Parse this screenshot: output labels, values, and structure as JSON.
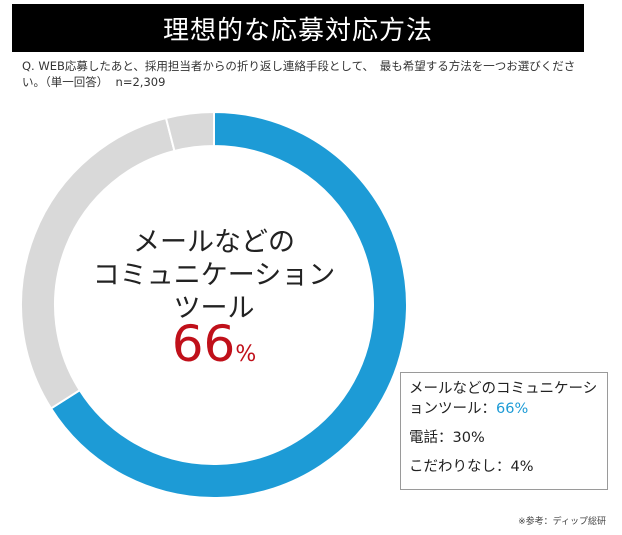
{
  "header": {
    "title": "理想的な応募対応方法",
    "question": "Q. WEB応募したあと、採用担当者からの折り返し連絡手段として、　最も希望する方法を一つお選びください。（単一回答）  n=2,309"
  },
  "center": {
    "label_line1": "メールなどの",
    "label_line2": "コミュニケーション",
    "label_line3": "ツール",
    "value_number": "66",
    "value_unit": "%"
  },
  "legend": {
    "item1_label": "メールなどのコミュニケーションツール：",
    "item1_value": "66%",
    "item2": "電話：30%",
    "item3": "こだわりなし：4%"
  },
  "footnote": "※参考：ディップ総研",
  "colors": {
    "primary": "#1d9bd6",
    "secondary": "#d9d9d9",
    "tertiary": "#d9d9d9",
    "accent_red": "#c0101a"
  },
  "chart_data": {
    "type": "pie",
    "variant": "donut",
    "title": "理想的な応募対応方法",
    "categories": [
      "メールなどのコミュニケーションツール",
      "電話",
      "こだわりなし"
    ],
    "values": [
      66,
      30,
      4
    ],
    "unit": "%",
    "legend_position": "bottom-right"
  }
}
